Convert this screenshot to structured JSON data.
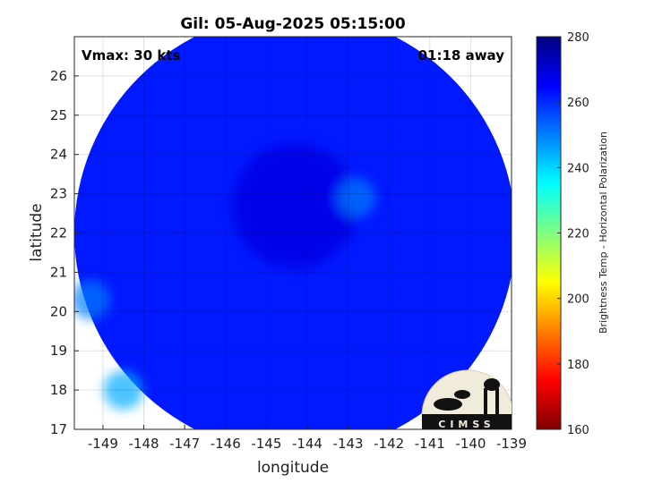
{
  "chart_data": {
    "type": "heatmap",
    "title": "Gil: 05-Aug-2025 05:15:00",
    "xlabel": "longitude",
    "ylabel": "latitude",
    "xlim": [
      -149.7,
      -139
    ],
    "ylim": [
      17,
      27
    ],
    "xticks": [
      -149,
      -148,
      -147,
      -146,
      -145,
      -144,
      -143,
      -142,
      -141,
      -140,
      -139
    ],
    "yticks": [
      17,
      18,
      19,
      20,
      21,
      22,
      23,
      24,
      25,
      26
    ],
    "grid": true,
    "annotation_left": "Vmax: 30 kts",
    "annotation_right": "01:18 away",
    "logo_text": "CIMSS",
    "colorbar": {
      "label": "Brightness Temp - Horizontal Polarization",
      "range": [
        160,
        280
      ],
      "ticks": [
        160,
        180,
        200,
        220,
        240,
        260,
        280
      ],
      "colormap": "jet"
    },
    "field": {
      "swath_center": [
        -144.3,
        22.0
      ],
      "swath_radius_deg": 5.4,
      "background_temp": 262,
      "cold_center": [
        -144.3,
        22.7
      ],
      "cold_center_temp": 268,
      "features": [
        {
          "description": "warm spot",
          "lon": -142.8,
          "lat": 22.9,
          "temp": 250
        },
        {
          "description": "warm edge",
          "lon": -148.5,
          "lat": 18.0,
          "temp": 245
        },
        {
          "description": "warm edge",
          "lon": -149.3,
          "lat": 20.3,
          "temp": 250
        }
      ]
    }
  },
  "colors": {
    "cmap_stops": [
      "#00007f",
      "#0000ff",
      "#007fff",
      "#00ffff",
      "#7fff7f",
      "#ffff00",
      "#ff7f00",
      "#ff0000",
      "#7f0000"
    ]
  }
}
